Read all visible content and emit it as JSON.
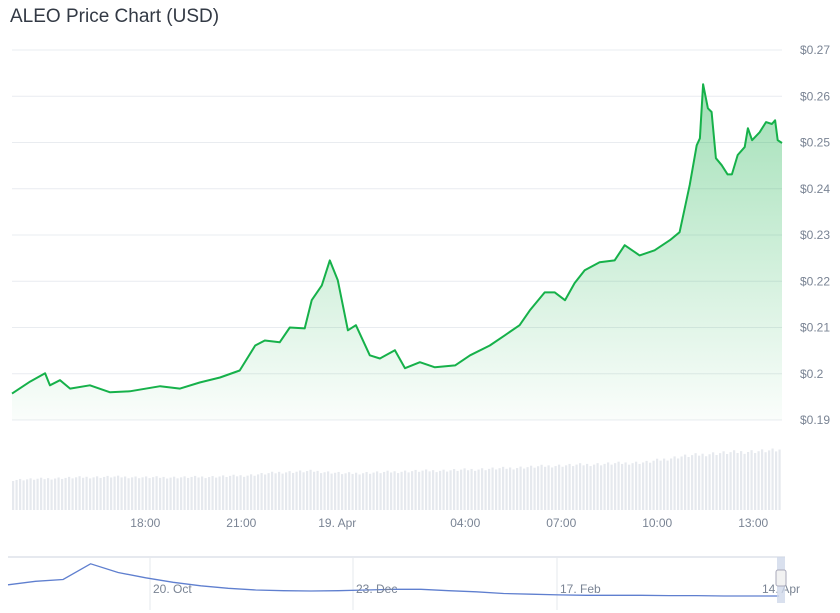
{
  "title": "ALEO Price Chart (USD)",
  "colors": {
    "line": "#16b14a",
    "fill": "#16b14a",
    "volume": "#e6e9ee",
    "navigator": "#5f7fcf",
    "grid": "#e9ecf0"
  },
  "chart_data": {
    "type": "area",
    "title": "ALEO Price Chart (USD)",
    "xlabel": "",
    "ylabel": "",
    "ylim": [
      0.19,
      0.27
    ],
    "y_ticks": [
      "$0.27",
      "$0.26",
      "$0.25",
      "$0.24",
      "$0.23",
      "$0.22",
      "$0.21",
      "$0.2",
      "$0.19"
    ],
    "y_tick_values": [
      0.27,
      0.26,
      0.25,
      0.24,
      0.23,
      0.22,
      0.21,
      0.2,
      0.19
    ],
    "x_range": [
      "18 Apr 13:50",
      "19 Apr 13:54"
    ],
    "x_ticks": [
      {
        "label": "18:00",
        "time": "18 Apr 18:00"
      },
      {
        "label": "21:00",
        "time": "18 Apr 21:00"
      },
      {
        "label": "19. Apr",
        "time": "19 Apr 00:00"
      },
      {
        "label": "04:00",
        "time": "19 Apr 04:00"
      },
      {
        "label": "07:00",
        "time": "19 Apr 07:00"
      },
      {
        "label": "10:00",
        "time": "19 Apr 10:00"
      },
      {
        "label": "13:00",
        "time": "19 Apr 13:00"
      }
    ],
    "grid": true,
    "series": [
      {
        "x": [
          "18 Apr 13:50",
          "18 Apr 14:24",
          "18 Apr 14:52",
          "18 Apr 15:01",
          "18 Apr 15:20",
          "18 Apr 15:39",
          "18 Apr 16:16",
          "18 Apr 16:54",
          "18 Apr 17:31",
          "18 Apr 18:28",
          "18 Apr 19:05",
          "18 Apr 19:42",
          "18 Apr 20:20",
          "18 Apr 20:57",
          "18 Apr 21:26",
          "18 Apr 21:44",
          "18 Apr 22:12",
          "18 Apr 22:31",
          "18 Apr 22:59",
          "18 Apr 23:12",
          "18 Apr 23:31",
          "18 Apr 23:46",
          "19 Apr 00:01",
          "19 Apr 00:20",
          "19 Apr 00:35",
          "19 Apr 01:01",
          "19 Apr 01:20",
          "19 Apr 01:48",
          "19 Apr 02:07",
          "19 Apr 02:35",
          "19 Apr 03:03",
          "19 Apr 03:41",
          "19 Apr 04:09",
          "19 Apr 04:46",
          "19 Apr 05:14",
          "19 Apr 05:42",
          "19 Apr 06:01",
          "19 Apr 06:29",
          "19 Apr 06:48",
          "19 Apr 07:07",
          "19 Apr 07:25",
          "19 Apr 07:44",
          "19 Apr 08:12",
          "19 Apr 08:40",
          "19 Apr 08:59",
          "19 Apr 09:27",
          "19 Apr 09:55",
          "19 Apr 10:24",
          "19 Apr 10:42",
          "19 Apr 11:01",
          "19 Apr 11:14",
          "19 Apr 11:20",
          "19 Apr 11:26",
          "19 Apr 11:35",
          "19 Apr 11:42",
          "19 Apr 11:50",
          "19 Apr 12:01",
          "19 Apr 12:12",
          "19 Apr 12:20",
          "19 Apr 12:31",
          "19 Apr 12:44",
          "19 Apr 12:50",
          "19 Apr 12:58",
          "19 Apr 13:12",
          "19 Apr 13:24",
          "19 Apr 13:35",
          "19 Apr 13:41",
          "19 Apr 13:46",
          "19 Apr 13:54"
        ],
        "y": [
          0.1957,
          0.1983,
          0.2001,
          0.1975,
          0.1986,
          0.1968,
          0.1975,
          0.196,
          0.1962,
          0.1973,
          0.1968,
          0.1981,
          0.1992,
          0.2007,
          0.2061,
          0.2072,
          0.2068,
          0.21,
          0.2098,
          0.2159,
          0.2191,
          0.2245,
          0.2202,
          0.2094,
          0.2105,
          0.204,
          0.2033,
          0.2051,
          0.2012,
          0.2025,
          0.2014,
          0.2018,
          0.204,
          0.2061,
          0.2083,
          0.2105,
          0.2137,
          0.2176,
          0.2176,
          0.2159,
          0.2196,
          0.2224,
          0.2241,
          0.2245,
          0.2278,
          0.2256,
          0.2267,
          0.2289,
          0.2306,
          0.2408,
          0.2494,
          0.2509,
          0.2626,
          0.2574,
          0.2566,
          0.2466,
          0.2451,
          0.2431,
          0.2431,
          0.2473,
          0.249,
          0.2531,
          0.2505,
          0.2522,
          0.2544,
          0.254,
          0.2548,
          0.2505,
          0.2499
        ]
      }
    ],
    "volume_relative": [
      0.48,
      0.5,
      0.52,
      0.53,
      0.52,
      0.52,
      0.53,
      0.55,
      0.6,
      0.62,
      0.58,
      0.6,
      0.62,
      0.63,
      0.65,
      0.67,
      0.7,
      0.72,
      0.74,
      0.76,
      0.85,
      0.9,
      0.93,
      0.95
    ],
    "navigator": {
      "x_ticks": [
        "20. Oct",
        "23. Dec",
        "17. Feb",
        "14. Apr"
      ],
      "values_relative": [
        0.35,
        0.45,
        0.5,
        0.95,
        0.7,
        0.55,
        0.42,
        0.32,
        0.25,
        0.2,
        0.18,
        0.17,
        0.18,
        0.2,
        0.22,
        0.22,
        0.18,
        0.15,
        0.1,
        0.08,
        0.06,
        0.05,
        0.05,
        0.05,
        0.04,
        0.04,
        0.03,
        0.03,
        0.03
      ]
    }
  }
}
